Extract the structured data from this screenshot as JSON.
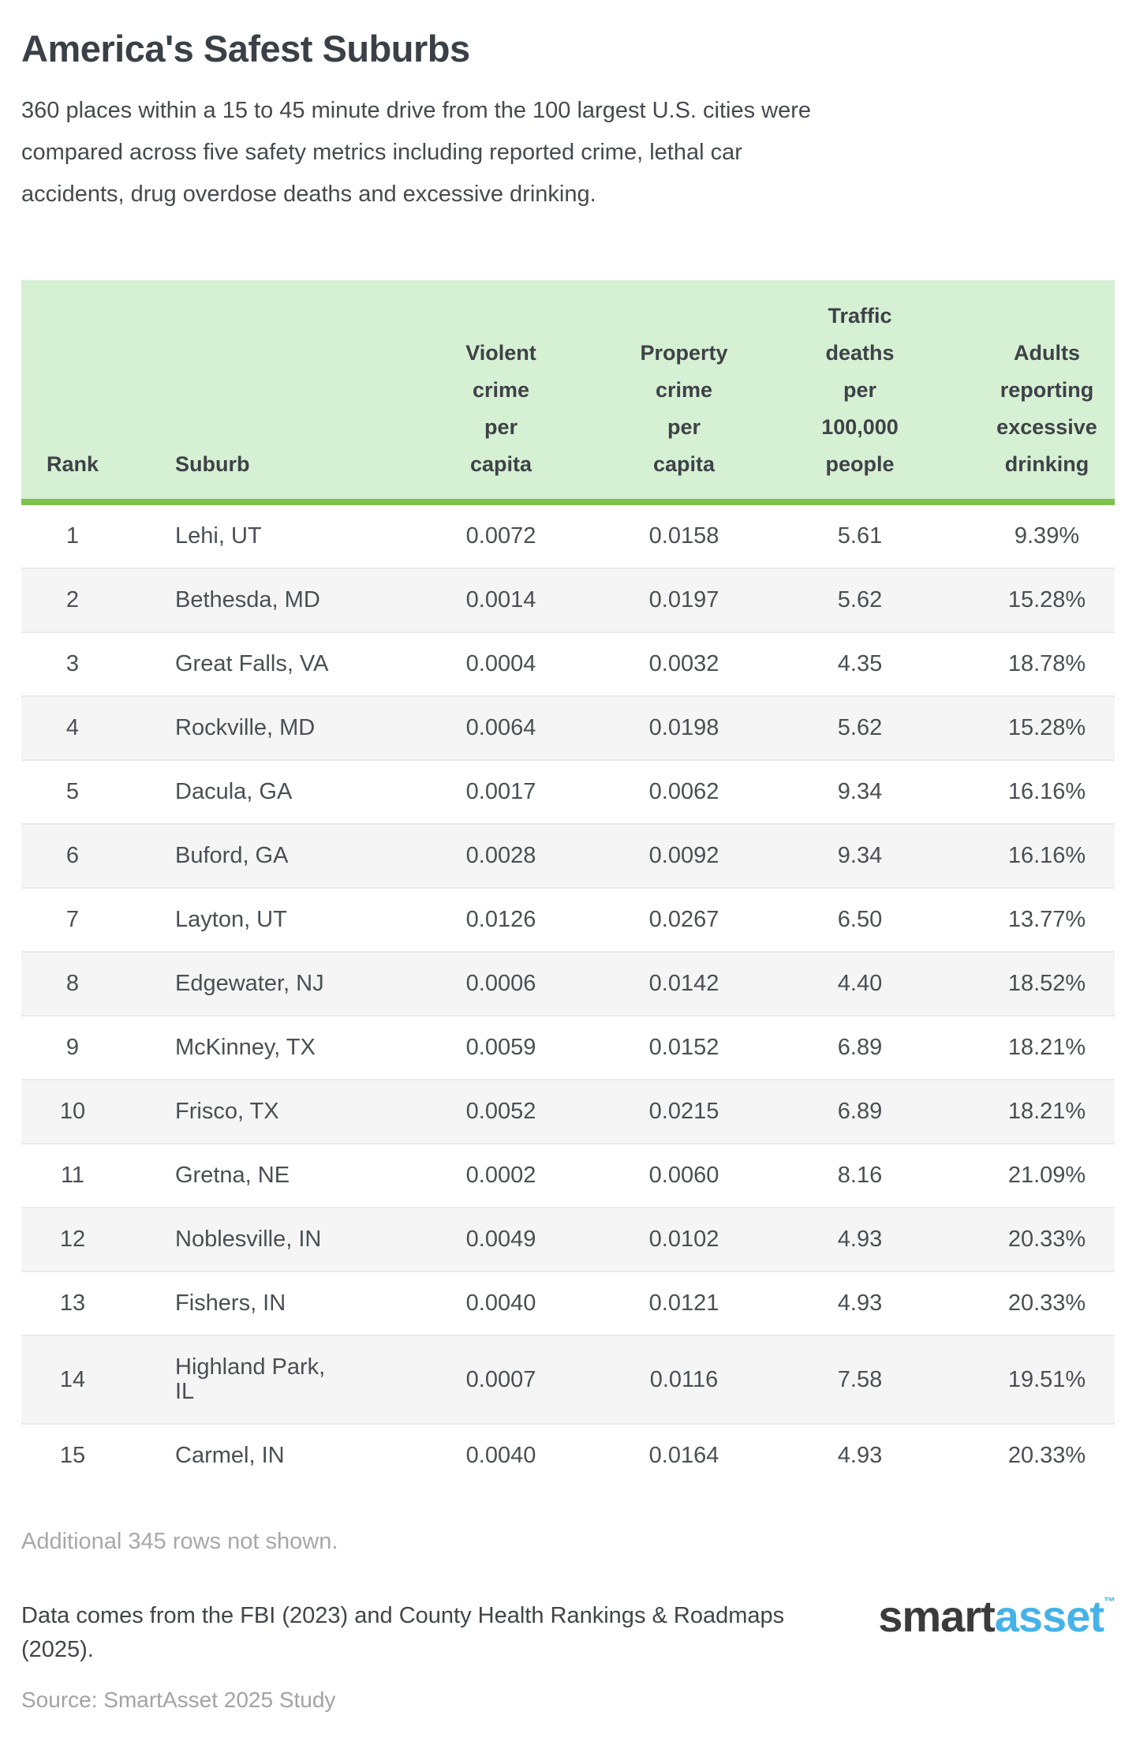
{
  "title": "America's Safest Suburbs",
  "subtitle": "360 places within a 15 to 45 minute drive from the 100 largest U.S. cities were compared across five safety metrics including reported crime, lethal car accidents, drug overdose deaths and excessive drinking.",
  "table": {
    "headers": {
      "rank": "Rank",
      "suburb": "Suburb",
      "violent_crime": "Violent\ncrime\nper\ncapita",
      "property_crime": "Property\ncrime\nper\ncapita",
      "traffic_deaths": "Traffic\ndeaths\nper\n100,000\npeople",
      "excessive_drinking": "Adults\nreporting\nexcessive\ndrinking"
    },
    "rows": [
      {
        "rank": "1",
        "suburb": "Lehi, UT",
        "violent_crime": "0.0072",
        "property_crime": "0.0158",
        "traffic_deaths": "5.61",
        "excessive_drinking": "9.39%"
      },
      {
        "rank": "2",
        "suburb": "Bethesda, MD",
        "violent_crime": "0.0014",
        "property_crime": "0.0197",
        "traffic_deaths": "5.62",
        "excessive_drinking": "15.28%"
      },
      {
        "rank": "3",
        "suburb": "Great Falls, VA",
        "violent_crime": "0.0004",
        "property_crime": "0.0032",
        "traffic_deaths": "4.35",
        "excessive_drinking": "18.78%"
      },
      {
        "rank": "4",
        "suburb": "Rockville, MD",
        "violent_crime": "0.0064",
        "property_crime": "0.0198",
        "traffic_deaths": "5.62",
        "excessive_drinking": "15.28%"
      },
      {
        "rank": "5",
        "suburb": "Dacula, GA",
        "violent_crime": "0.0017",
        "property_crime": "0.0062",
        "traffic_deaths": "9.34",
        "excessive_drinking": "16.16%"
      },
      {
        "rank": "6",
        "suburb": "Buford, GA",
        "violent_crime": "0.0028",
        "property_crime": "0.0092",
        "traffic_deaths": "9.34",
        "excessive_drinking": "16.16%"
      },
      {
        "rank": "7",
        "suburb": "Layton, UT",
        "violent_crime": "0.0126",
        "property_crime": "0.0267",
        "traffic_deaths": "6.50",
        "excessive_drinking": "13.77%"
      },
      {
        "rank": "8",
        "suburb": "Edgewater, NJ",
        "violent_crime": "0.0006",
        "property_crime": "0.0142",
        "traffic_deaths": "4.40",
        "excessive_drinking": "18.52%"
      },
      {
        "rank": "9",
        "suburb": "McKinney, TX",
        "violent_crime": "0.0059",
        "property_crime": "0.0152",
        "traffic_deaths": "6.89",
        "excessive_drinking": "18.21%"
      },
      {
        "rank": "10",
        "suburb": "Frisco, TX",
        "violent_crime": "0.0052",
        "property_crime": "0.0215",
        "traffic_deaths": "6.89",
        "excessive_drinking": "18.21%"
      },
      {
        "rank": "11",
        "suburb": "Gretna, NE",
        "violent_crime": "0.0002",
        "property_crime": "0.0060",
        "traffic_deaths": "8.16",
        "excessive_drinking": "21.09%"
      },
      {
        "rank": "12",
        "suburb": "Noblesville, IN",
        "violent_crime": "0.0049",
        "property_crime": "0.0102",
        "traffic_deaths": "4.93",
        "excessive_drinking": "20.33%"
      },
      {
        "rank": "13",
        "suburb": "Fishers, IN",
        "violent_crime": "0.0040",
        "property_crime": "0.0121",
        "traffic_deaths": "4.93",
        "excessive_drinking": "20.33%"
      },
      {
        "rank": "14",
        "suburb": "Highland Park,\nIL",
        "violent_crime": "0.0007",
        "property_crime": "0.0116",
        "traffic_deaths": "7.58",
        "excessive_drinking": "19.51%"
      },
      {
        "rank": "15",
        "suburb": "Carmel, IN",
        "violent_crime": "0.0040",
        "property_crime": "0.0164",
        "traffic_deaths": "4.93",
        "excessive_drinking": "20.33%"
      }
    ]
  },
  "chart_data": {
    "type": "table",
    "title": "America's Safest Suburbs",
    "columns": [
      "Rank",
      "Suburb",
      "Violent crime per capita",
      "Property crime per capita",
      "Traffic deaths per 100,000 people",
      "Adults reporting excessive drinking"
    ],
    "rows": [
      [
        1,
        "Lehi, UT",
        0.0072,
        0.0158,
        5.61,
        "9.39%"
      ],
      [
        2,
        "Bethesda, MD",
        0.0014,
        0.0197,
        5.62,
        "15.28%"
      ],
      [
        3,
        "Great Falls, VA",
        0.0004,
        0.0032,
        4.35,
        "18.78%"
      ],
      [
        4,
        "Rockville, MD",
        0.0064,
        0.0198,
        5.62,
        "15.28%"
      ],
      [
        5,
        "Dacula, GA",
        0.0017,
        0.0062,
        9.34,
        "16.16%"
      ],
      [
        6,
        "Buford, GA",
        0.0028,
        0.0092,
        9.34,
        "16.16%"
      ],
      [
        7,
        "Layton, UT",
        0.0126,
        0.0267,
        6.5,
        "13.77%"
      ],
      [
        8,
        "Edgewater, NJ",
        0.0006,
        0.0142,
        4.4,
        "18.52%"
      ],
      [
        9,
        "McKinney, TX",
        0.0059,
        0.0152,
        6.89,
        "18.21%"
      ],
      [
        10,
        "Frisco, TX",
        0.0052,
        0.0215,
        6.89,
        "18.21%"
      ],
      [
        11,
        "Gretna, NE",
        0.0002,
        0.006,
        8.16,
        "21.09%"
      ],
      [
        12,
        "Noblesville, IN",
        0.0049,
        0.0102,
        4.93,
        "20.33%"
      ],
      [
        13,
        "Fishers, IN",
        0.004,
        0.0121,
        4.93,
        "20.33%"
      ],
      [
        14,
        "Highland Park, IL",
        0.0007,
        0.0116,
        7.58,
        "19.51%"
      ],
      [
        15,
        "Carmel, IN",
        0.004,
        0.0164,
        4.93,
        "20.33%"
      ]
    ]
  },
  "footer": {
    "note": "Additional 345 rows not shown.",
    "data_source": "Data comes from the FBI (2023) and County Health Rankings & Roadmaps (2025).",
    "source": "Source: SmartAsset 2025 Study",
    "logo": {
      "part1": "smart",
      "part2": "asset",
      "tm": "™"
    }
  },
  "colors": {
    "header_bg": "#d6f0d4",
    "header_border": "#7cc24c",
    "even_row_bg": "#f5f5f6",
    "logo_blue": "#45b2e8",
    "muted_text": "#a7a8aa"
  }
}
